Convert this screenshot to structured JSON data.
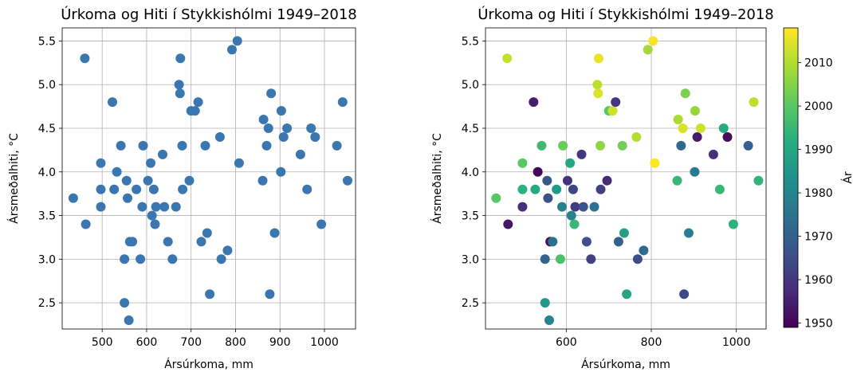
{
  "chart_data": [
    {
      "type": "scatter",
      "title": "Úrkoma og Hiti í Stykkishólmi 1949–2018",
      "xlabel": "Ársúrkoma, mm",
      "ylabel": "Ársmeðalhiti, °C",
      "xlim": [
        410,
        1070
      ],
      "ylim": [
        2.2,
        5.65
      ],
      "xticks": [
        "500",
        "600",
        "700",
        "800",
        "900",
        "1000"
      ],
      "yticks": [
        "2.5",
        "3.0",
        "3.5",
        "4.0",
        "4.5",
        "5.0",
        "5.5"
      ],
      "grid": true,
      "marker_color": "#3a76af",
      "points": [
        [
          461,
          5.3
        ],
        [
          435,
          3.7
        ],
        [
          463,
          3.4
        ],
        [
          497,
          4.1
        ],
        [
          497,
          3.8
        ],
        [
          497,
          3.6
        ],
        [
          523,
          4.8
        ],
        [
          527,
          3.8
        ],
        [
          533,
          4.0
        ],
        [
          542,
          4.3
        ],
        [
          550,
          3.0
        ],
        [
          550,
          2.5
        ],
        [
          555,
          3.9
        ],
        [
          557,
          3.7
        ],
        [
          560,
          2.3
        ],
        [
          562,
          3.2
        ],
        [
          568,
          3.2
        ],
        [
          577,
          3.8
        ],
        [
          586,
          3.0
        ],
        [
          590,
          3.6
        ],
        [
          592,
          4.3
        ],
        [
          603,
          3.9
        ],
        [
          609,
          4.1
        ],
        [
          612,
          3.5
        ],
        [
          616,
          3.8
        ],
        [
          619,
          3.4
        ],
        [
          621,
          3.6
        ],
        [
          636,
          4.2
        ],
        [
          640,
          3.6
        ],
        [
          648,
          3.2
        ],
        [
          658,
          3.0
        ],
        [
          666,
          3.6
        ],
        [
          673,
          5.0
        ],
        [
          675,
          4.9
        ],
        [
          676,
          5.3
        ],
        [
          680,
          4.3
        ],
        [
          681,
          3.8
        ],
        [
          696,
          3.9
        ],
        [
          700,
          4.7
        ],
        [
          709,
          4.7
        ],
        [
          716,
          4.8
        ],
        [
          723,
          3.2
        ],
        [
          732,
          4.3
        ],
        [
          736,
          3.3
        ],
        [
          742,
          2.6
        ],
        [
          765,
          4.4
        ],
        [
          768,
          3.0
        ],
        [
          782,
          3.1
        ],
        [
          792,
          5.4
        ],
        [
          804,
          5.5
        ],
        [
          808,
          4.1
        ],
        [
          861,
          3.9
        ],
        [
          863,
          4.6
        ],
        [
          870,
          4.3
        ],
        [
          874,
          4.5
        ],
        [
          877,
          2.6
        ],
        [
          880,
          4.9
        ],
        [
          888,
          3.3
        ],
        [
          902,
          4.0
        ],
        [
          903,
          4.7
        ],
        [
          908,
          4.4
        ],
        [
          916,
          4.5
        ],
        [
          946,
          4.2
        ],
        [
          961,
          3.8
        ],
        [
          970,
          4.5
        ],
        [
          979,
          4.4
        ],
        [
          993,
          3.4
        ],
        [
          1028,
          4.3
        ],
        [
          1041,
          4.8
        ],
        [
          1052,
          3.9
        ]
      ]
    },
    {
      "type": "scatter",
      "title": "Úrkoma og Hiti í Stykkishólmi 1949–2018",
      "xlabel": "Ársúrkoma, mm",
      "ylabel": "Ársmeðalhiti, °C",
      "xlim": [
        410,
        1070
      ],
      "ylim": [
        2.2,
        5.65
      ],
      "xticks": [
        "600",
        "800",
        "1000"
      ],
      "yticks": [
        "2.5",
        "3.0",
        "3.5",
        "4.0",
        "4.5",
        "5.0",
        "5.5"
      ],
      "grid": true,
      "colormap": "viridis",
      "colorbar": {
        "label": "Ár",
        "range": [
          1949,
          2018
        ],
        "ticks": [
          "1950",
          "1960",
          "1970",
          "1980",
          "1990",
          "2000",
          "2010"
        ]
      },
      "points": [
        [
          461,
          5.3,
          2012
        ],
        [
          435,
          3.7,
          2000
        ],
        [
          463,
          3.4,
          1953
        ],
        [
          497,
          4.1,
          2000
        ],
        [
          497,
          3.8,
          1993
        ],
        [
          497,
          3.6,
          1958
        ],
        [
          523,
          4.8,
          1955
        ],
        [
          527,
          3.8,
          1991
        ],
        [
          533,
          4.0,
          1950
        ],
        [
          542,
          4.3,
          1996
        ],
        [
          550,
          3.0,
          1971
        ],
        [
          550,
          2.5,
          1985
        ],
        [
          555,
          3.9,
          1968
        ],
        [
          557,
          3.7,
          1966
        ],
        [
          560,
          2.3,
          1980
        ],
        [
          562,
          3.2,
          1952
        ],
        [
          568,
          3.2,
          1975
        ],
        [
          577,
          3.8,
          1986
        ],
        [
          586,
          3.0,
          1998
        ],
        [
          590,
          3.6,
          1979
        ],
        [
          592,
          4.3,
          2002
        ],
        [
          603,
          3.9,
          1959
        ],
        [
          609,
          4.1,
          1990
        ],
        [
          612,
          3.5,
          1980
        ],
        [
          616,
          3.8,
          1963
        ],
        [
          619,
          3.4,
          1995
        ],
        [
          621,
          3.6,
          1961
        ],
        [
          636,
          4.2,
          1960
        ],
        [
          640,
          3.6,
          1967
        ],
        [
          648,
          3.2,
          1966
        ],
        [
          658,
          3.0,
          1962
        ],
        [
          666,
          3.6,
          1975
        ],
        [
          673,
          5.0,
          2011
        ],
        [
          675,
          4.9,
          2014
        ],
        [
          676,
          5.3,
          2016
        ],
        [
          680,
          4.3,
          2006
        ],
        [
          681,
          3.8,
          1962
        ],
        [
          696,
          3.9,
          1957
        ],
        [
          700,
          4.7,
          2000
        ],
        [
          709,
          4.7,
          2013
        ],
        [
          716,
          4.8,
          1960
        ],
        [
          723,
          3.2,
          1970
        ],
        [
          732,
          4.3,
          2003
        ],
        [
          736,
          3.3,
          1988
        ],
        [
          742,
          2.6,
          1989
        ],
        [
          765,
          4.4,
          2010
        ],
        [
          768,
          3.0,
          1965
        ],
        [
          782,
          3.1,
          1973
        ],
        [
          792,
          5.4,
          2008
        ],
        [
          804,
          5.5,
          2017
        ],
        [
          808,
          4.1,
          2018
        ],
        [
          861,
          3.9,
          1995
        ],
        [
          863,
          4.6,
          2009
        ],
        [
          870,
          4.3,
          1972
        ],
        [
          874,
          4.5,
          2014
        ],
        [
          877,
          2.6,
          1964
        ],
        [
          880,
          4.9,
          2004
        ],
        [
          888,
          3.3,
          1979
        ],
        [
          902,
          4.0,
          1977
        ],
        [
          903,
          4.7,
          2007
        ],
        [
          908,
          4.4,
          1954
        ],
        [
          916,
          4.5,
          2013
        ],
        [
          946,
          4.2,
          1958
        ],
        [
          961,
          3.8,
          1995
        ],
        [
          970,
          4.5,
          1991
        ],
        [
          979,
          4.4,
          1951
        ],
        [
          993,
          3.4,
          1993
        ],
        [
          1028,
          4.3,
          1970
        ],
        [
          1041,
          4.8,
          2011
        ],
        [
          1052,
          3.9,
          1994
        ]
      ]
    }
  ]
}
